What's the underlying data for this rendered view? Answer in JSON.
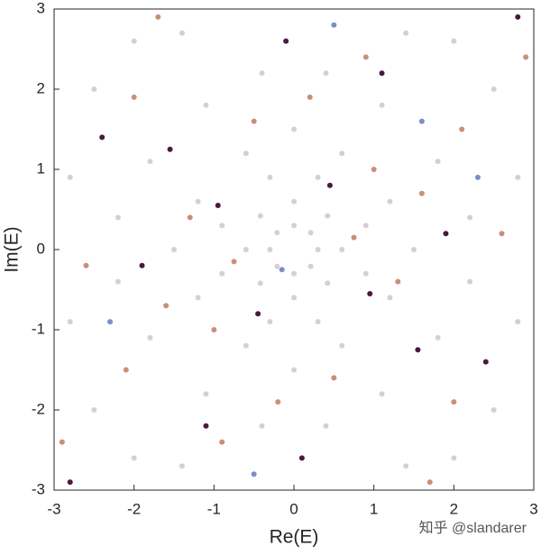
{
  "chart_data": {
    "type": "scatter",
    "xlabel": "Re(E)",
    "ylabel": "Im(E)",
    "watermark": "知乎 @slandarer",
    "xlim": [
      -3,
      3
    ],
    "ylim": [
      -3,
      3
    ],
    "xticks": [
      -3,
      -2,
      -1,
      0,
      1,
      2,
      3
    ],
    "yticks": [
      -3,
      -2,
      -1,
      0,
      1,
      2,
      3
    ],
    "series": [
      {
        "color": "#d9cdd4",
        "x": [
          0,
          0.3,
          0,
          -0.3,
          0.21,
          -0.21,
          0.21,
          -0.21,
          0,
          0.6,
          0,
          -0.6,
          0.42,
          -0.42,
          0.42,
          -0.42,
          0.9,
          -0.9,
          0.9,
          -0.9,
          0.3,
          -0.3,
          0.3,
          -0.3,
          1.2,
          -1.2,
          1.2,
          -1.2,
          0.6,
          -0.6,
          0.6,
          -0.6,
          1.5,
          -1.5,
          0,
          0,
          1.8,
          -1.8,
          1.8,
          -1.8,
          1.1,
          -1.1,
          1.1,
          -1.1,
          2.2,
          -2.2,
          2.2,
          -2.2,
          0.4,
          -0.4,
          0.4,
          -0.4,
          2.5,
          -2.5,
          2.5,
          -2.5,
          2.0,
          -2.0,
          2.0,
          -2.0,
          2.8,
          -2.8,
          2.8,
          -2.8,
          1.4,
          -1.4,
          1.4,
          -1.4
        ],
        "y": [
          0.3,
          0,
          -0.3,
          0,
          0.21,
          0.21,
          -0.21,
          -0.21,
          0.6,
          0,
          -0.6,
          0,
          0.42,
          0.42,
          -0.42,
          -0.42,
          0.3,
          0.3,
          -0.3,
          -0.3,
          0.9,
          0.9,
          -0.9,
          -0.9,
          0.6,
          0.6,
          -0.6,
          -0.6,
          1.2,
          1.2,
          -1.2,
          -1.2,
          0,
          0,
          1.5,
          -1.5,
          1.1,
          1.1,
          -1.1,
          -1.1,
          1.8,
          1.8,
          -1.8,
          -1.8,
          0.4,
          0.4,
          -0.4,
          -0.4,
          2.2,
          2.2,
          -2.2,
          -2.2,
          2.0,
          2.0,
          -2.0,
          -2.0,
          2.6,
          2.6,
          -2.6,
          -2.6,
          0.9,
          0.9,
          -0.9,
          -0.9,
          2.7,
          2.7,
          -2.7,
          -2.7
        ]
      },
      {
        "color": "#c98f78",
        "x": [
          0.75,
          -0.75,
          1.0,
          -1.0,
          1.6,
          -1.6,
          0.2,
          -0.2,
          2.1,
          -2.1,
          2.6,
          -2.6,
          0.9,
          -0.9,
          1.3,
          -1.3,
          2.0,
          -2.0,
          0.5,
          -0.5,
          2.9,
          -2.9,
          1.7,
          -1.7
        ],
        "y": [
          0.15,
          -0.15,
          1.0,
          -1.0,
          0.7,
          -0.7,
          1.9,
          -1.9,
          1.5,
          -1.5,
          0.2,
          -0.2,
          2.4,
          -2.4,
          -0.4,
          0.4,
          -1.9,
          1.9,
          -1.6,
          1.6,
          2.4,
          -2.4,
          -2.9,
          2.9
        ]
      },
      {
        "color": "#4a1840",
        "x": [
          0.45,
          -0.45,
          1.9,
          -1.9,
          1.1,
          -1.1,
          2.4,
          -2.4,
          0.1,
          -0.1,
          2.8,
          -2.8,
          1.55,
          -1.55,
          0.95,
          -0.95
        ],
        "y": [
          0.8,
          -0.8,
          0.2,
          -0.2,
          2.2,
          -2.2,
          -1.4,
          1.4,
          -2.6,
          2.6,
          2.9,
          -2.9,
          -1.25,
          1.25,
          -0.55,
          0.55
        ]
      },
      {
        "color": "#7b8fc6",
        "x": [
          -0.15,
          0.5,
          -2.3,
          2.3,
          -0.5,
          1.6
        ],
        "y": [
          -0.25,
          2.8,
          -0.9,
          0.9,
          -2.8,
          1.6
        ]
      }
    ]
  }
}
